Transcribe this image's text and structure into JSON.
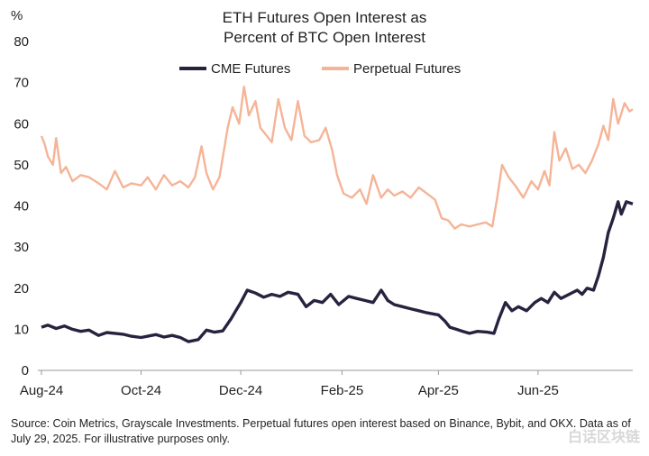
{
  "chart_data": {
    "type": "line",
    "title_lines": [
      "ETH Futures Open Interest as",
      "Percent of BTC Open Interest"
    ],
    "ylabel": "%",
    "ylim": [
      0,
      80
    ],
    "yticks": [
      0,
      10,
      20,
      30,
      40,
      50,
      60,
      70,
      80
    ],
    "xlim": [
      "2024-08-01",
      "2025-07-29"
    ],
    "xticks": [
      {
        "date": "2024-08-01",
        "label": "Aug-24"
      },
      {
        "date": "2024-10-01",
        "label": "Oct-24"
      },
      {
        "date": "2024-12-01",
        "label": "Dec-24"
      },
      {
        "date": "2025-02-01",
        "label": "Feb-25"
      },
      {
        "date": "2025-04-01",
        "label": "Apr-25"
      },
      {
        "date": "2025-06-01",
        "label": "Jun-25"
      }
    ],
    "grid": false,
    "legend_position": "top-center",
    "colors": {
      "cme": "#27233f",
      "perp": "#f5b497"
    },
    "series": [
      {
        "name": "CME Futures",
        "color": "#27233f",
        "points": [
          [
            "2024-08-01",
            10.5
          ],
          [
            "2024-08-05",
            11.0
          ],
          [
            "2024-08-10",
            10.2
          ],
          [
            "2024-08-15",
            10.8
          ],
          [
            "2024-08-20",
            10.0
          ],
          [
            "2024-08-25",
            9.5
          ],
          [
            "2024-08-30",
            9.8
          ],
          [
            "2024-09-05",
            8.5
          ],
          [
            "2024-09-10",
            9.2
          ],
          [
            "2024-09-15",
            9.0
          ],
          [
            "2024-09-20",
            8.8
          ],
          [
            "2024-09-25",
            8.3
          ],
          [
            "2024-10-01",
            8.0
          ],
          [
            "2024-10-05",
            8.3
          ],
          [
            "2024-10-10",
            8.7
          ],
          [
            "2024-10-15",
            8.1
          ],
          [
            "2024-10-20",
            8.5
          ],
          [
            "2024-10-25",
            8.0
          ],
          [
            "2024-10-30",
            7.0
          ],
          [
            "2024-11-05",
            7.5
          ],
          [
            "2024-11-10",
            9.8
          ],
          [
            "2024-11-15",
            9.3
          ],
          [
            "2024-11-20",
            9.6
          ],
          [
            "2024-11-25",
            12.5
          ],
          [
            "2024-11-28",
            14.5
          ],
          [
            "2024-12-01",
            16.5
          ],
          [
            "2024-12-05",
            19.5
          ],
          [
            "2024-12-10",
            18.8
          ],
          [
            "2024-12-15",
            17.8
          ],
          [
            "2024-12-20",
            18.5
          ],
          [
            "2024-12-25",
            18.0
          ],
          [
            "2024-12-30",
            19.0
          ],
          [
            "2025-01-05",
            18.5
          ],
          [
            "2025-01-10",
            15.5
          ],
          [
            "2025-01-15",
            17.0
          ],
          [
            "2025-01-20",
            16.5
          ],
          [
            "2025-01-25",
            18.5
          ],
          [
            "2025-01-30",
            16.0
          ],
          [
            "2025-02-05",
            18.0
          ],
          [
            "2025-02-10",
            17.5
          ],
          [
            "2025-02-15",
            17.0
          ],
          [
            "2025-02-20",
            16.5
          ],
          [
            "2025-02-25",
            19.5
          ],
          [
            "2025-03-01",
            17.0
          ],
          [
            "2025-03-05",
            16.0
          ],
          [
            "2025-03-10",
            15.5
          ],
          [
            "2025-03-15",
            15.0
          ],
          [
            "2025-03-20",
            14.5
          ],
          [
            "2025-03-25",
            14.0
          ],
          [
            "2025-04-01",
            13.5
          ],
          [
            "2025-04-05",
            12.0
          ],
          [
            "2025-04-08",
            10.5
          ],
          [
            "2025-04-12",
            10.0
          ],
          [
            "2025-04-16",
            9.5
          ],
          [
            "2025-04-20",
            9.0
          ],
          [
            "2025-04-25",
            9.5
          ],
          [
            "2025-05-01",
            9.3
          ],
          [
            "2025-05-05",
            9.0
          ],
          [
            "2025-05-08",
            12.5
          ],
          [
            "2025-05-12",
            16.5
          ],
          [
            "2025-05-16",
            14.5
          ],
          [
            "2025-05-20",
            15.5
          ],
          [
            "2025-05-25",
            14.5
          ],
          [
            "2025-05-30",
            16.5
          ],
          [
            "2025-06-03",
            17.5
          ],
          [
            "2025-06-07",
            16.5
          ],
          [
            "2025-06-11",
            19.0
          ],
          [
            "2025-06-15",
            17.5
          ],
          [
            "2025-06-20",
            18.5
          ],
          [
            "2025-06-25",
            19.5
          ],
          [
            "2025-06-28",
            18.5
          ],
          [
            "2025-07-01",
            20.0
          ],
          [
            "2025-07-05",
            19.5
          ],
          [
            "2025-07-08",
            23.0
          ],
          [
            "2025-07-11",
            27.5
          ],
          [
            "2025-07-14",
            33.5
          ],
          [
            "2025-07-17",
            37.0
          ],
          [
            "2025-07-20",
            41.0
          ],
          [
            "2025-07-22",
            38.0
          ],
          [
            "2025-07-25",
            41.0
          ],
          [
            "2025-07-29",
            40.5
          ]
        ]
      },
      {
        "name": "Perpetual Futures",
        "color": "#f5b497",
        "points": [
          [
            "2024-08-01",
            57.0
          ],
          [
            "2024-08-03",
            55.0
          ],
          [
            "2024-08-05",
            52.0
          ],
          [
            "2024-08-08",
            50.0
          ],
          [
            "2024-08-10",
            56.5
          ],
          [
            "2024-08-13",
            48.0
          ],
          [
            "2024-08-16",
            49.5
          ],
          [
            "2024-08-20",
            46.0
          ],
          [
            "2024-08-25",
            47.5
          ],
          [
            "2024-08-30",
            47.0
          ],
          [
            "2024-09-05",
            45.5
          ],
          [
            "2024-09-10",
            44.0
          ],
          [
            "2024-09-15",
            48.5
          ],
          [
            "2024-09-20",
            44.5
          ],
          [
            "2024-09-25",
            45.5
          ],
          [
            "2024-10-01",
            45.0
          ],
          [
            "2024-10-05",
            47.0
          ],
          [
            "2024-10-10",
            44.0
          ],
          [
            "2024-10-15",
            47.5
          ],
          [
            "2024-10-20",
            45.0
          ],
          [
            "2024-10-25",
            46.0
          ],
          [
            "2024-10-30",
            44.5
          ],
          [
            "2024-11-03",
            47.0
          ],
          [
            "2024-11-07",
            54.5
          ],
          [
            "2024-11-10",
            48.0
          ],
          [
            "2024-11-14",
            44.0
          ],
          [
            "2024-11-18",
            47.0
          ],
          [
            "2024-11-23",
            59.0
          ],
          [
            "2024-11-26",
            64.0
          ],
          [
            "2024-11-30",
            60.0
          ],
          [
            "2024-12-03",
            69.0
          ],
          [
            "2024-12-06",
            62.0
          ],
          [
            "2024-12-10",
            65.5
          ],
          [
            "2024-12-13",
            59.0
          ],
          [
            "2024-12-17",
            57.0
          ],
          [
            "2024-12-20",
            55.5
          ],
          [
            "2024-12-24",
            66.0
          ],
          [
            "2024-12-28",
            59.0
          ],
          [
            "2025-01-01",
            56.0
          ],
          [
            "2025-01-05",
            65.5
          ],
          [
            "2025-01-09",
            57.0
          ],
          [
            "2025-01-13",
            55.5
          ],
          [
            "2025-01-18",
            56.0
          ],
          [
            "2025-01-22",
            59.0
          ],
          [
            "2025-01-26",
            53.5
          ],
          [
            "2025-01-29",
            47.5
          ],
          [
            "2025-02-02",
            43.0
          ],
          [
            "2025-02-07",
            42.0
          ],
          [
            "2025-02-12",
            44.0
          ],
          [
            "2025-02-16",
            40.5
          ],
          [
            "2025-02-20",
            47.5
          ],
          [
            "2025-02-25",
            42.0
          ],
          [
            "2025-03-01",
            44.0
          ],
          [
            "2025-03-05",
            42.5
          ],
          [
            "2025-03-10",
            43.5
          ],
          [
            "2025-03-15",
            42.0
          ],
          [
            "2025-03-20",
            44.5
          ],
          [
            "2025-03-25",
            43.0
          ],
          [
            "2025-03-30",
            41.5
          ],
          [
            "2025-04-03",
            37.0
          ],
          [
            "2025-04-07",
            36.5
          ],
          [
            "2025-04-11",
            34.5
          ],
          [
            "2025-04-15",
            35.5
          ],
          [
            "2025-04-20",
            35.0
          ],
          [
            "2025-04-25",
            35.5
          ],
          [
            "2025-04-30",
            36.0
          ],
          [
            "2025-05-04",
            35.0
          ],
          [
            "2025-05-07",
            42.0
          ],
          [
            "2025-05-10",
            50.0
          ],
          [
            "2025-05-14",
            47.0
          ],
          [
            "2025-05-18",
            45.0
          ],
          [
            "2025-05-23",
            42.0
          ],
          [
            "2025-05-28",
            46.0
          ],
          [
            "2025-06-01",
            44.0
          ],
          [
            "2025-06-05",
            48.5
          ],
          [
            "2025-06-08",
            45.0
          ],
          [
            "2025-06-11",
            58.0
          ],
          [
            "2025-06-14",
            51.0
          ],
          [
            "2025-06-18",
            54.0
          ],
          [
            "2025-06-22",
            49.0
          ],
          [
            "2025-06-26",
            50.0
          ],
          [
            "2025-06-30",
            48.0
          ],
          [
            "2025-07-04",
            51.0
          ],
          [
            "2025-07-08",
            55.0
          ],
          [
            "2025-07-11",
            59.5
          ],
          [
            "2025-07-14",
            56.0
          ],
          [
            "2025-07-17",
            66.0
          ],
          [
            "2025-07-20",
            60.0
          ],
          [
            "2025-07-24",
            65.0
          ],
          [
            "2025-07-27",
            63.0
          ],
          [
            "2025-07-29",
            63.5
          ]
        ]
      }
    ]
  },
  "footnote": "Source: Coin Metrics, Grayscale Investments. Perpetual futures open interest based on Binance, Bybit, and OKX. Data as of July 29, 2025. For illustrative purposes only.",
  "watermark": "白话区块链"
}
